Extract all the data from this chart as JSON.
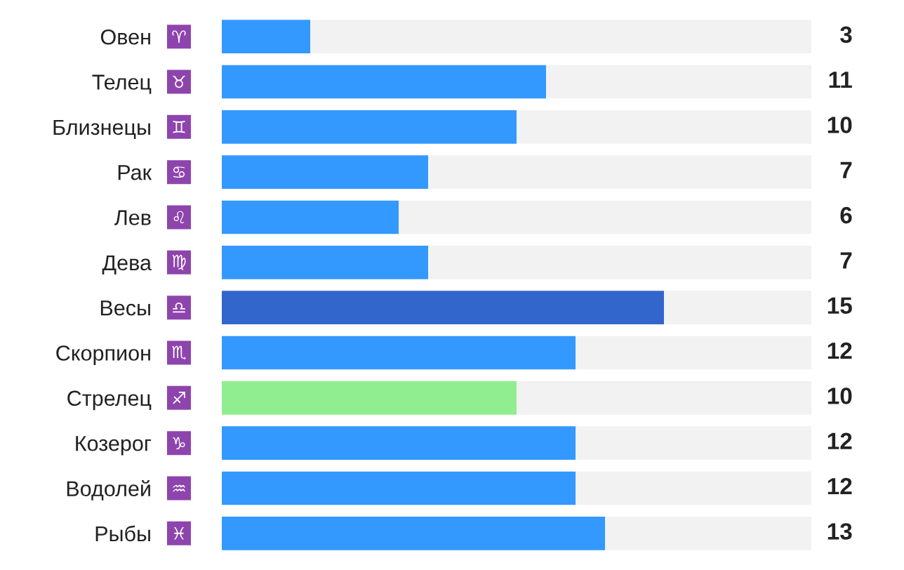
{
  "chart_data": {
    "type": "bar",
    "orientation": "horizontal",
    "stacked": true,
    "categories": [
      "Овен",
      "Телец",
      "Близнецы",
      "Рак",
      "Лев",
      "Дева",
      "Весы",
      "Скорпион",
      "Стрелец",
      "Козерог",
      "Водолей",
      "Рыбы"
    ],
    "series": [
      {
        "values": [
          3,
          11,
          10,
          7,
          6,
          7,
          15,
          12,
          10,
          12,
          12,
          13
        ],
        "value_labels": [
          "3",
          "11",
          "10",
          "7",
          "6",
          "7",
          "15",
          "12",
          "10",
          "12",
          "12",
          "13"
        ],
        "colors": [
          "#3399ff",
          "#3399ff",
          "#3399ff",
          "#3399ff",
          "#3399ff",
          "#3399ff",
          "#3366cc",
          "#3399ff",
          "#90ee90",
          "#3399ff",
          "#3399ff",
          "#3399ff"
        ]
      },
      {
        "values": [
          17,
          9,
          10,
          13,
          14,
          13,
          5,
          8,
          10,
          8,
          8,
          7
        ],
        "color": "#f2f2f2"
      }
    ]
  }
}
